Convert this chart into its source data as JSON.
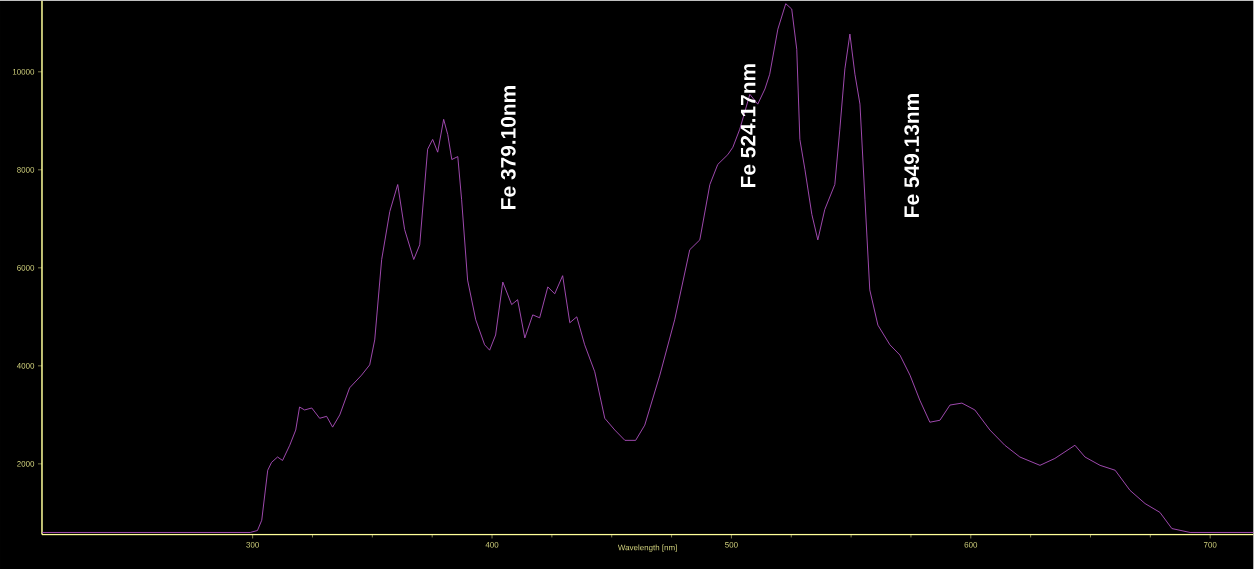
{
  "chart_data": {
    "type": "line",
    "xlabel": "Wavelength [nm]",
    "annotations": [
      "Fe 379.10nm",
      "Fe 524.17nm",
      "Fe 549.13nm"
    ],
    "x": [
      212,
      250,
      299,
      302,
      303.8,
      306.3,
      307.9,
      310.4,
      312.5,
      315.5,
      318,
      319.6,
      321.7,
      324.7,
      328,
      330.9,
      333.4,
      336.4,
      340.5,
      345.5,
      348.9,
      351,
      353.9,
      357.3,
      360.6,
      363.5,
      367.3,
      369.8,
      373.1,
      375.2,
      377.3,
      379.8,
      381.5,
      383.2,
      385.7,
      387.3,
      389.8,
      393.2,
      396.9,
      399,
      401.5,
      404.5,
      408.2,
      410.7,
      413.7,
      417,
      419.9,
      423.3,
      426.2,
      429.5,
      432.5,
      435.4,
      438.7,
      442.9,
      447.1,
      451.3,
      455.5,
      460,
      463.8,
      470.1,
      476.3,
      482.6,
      486.8,
      491,
      494.3,
      498.5,
      500.6,
      503.5,
      507.7,
      511,
      514,
      516,
      519.4,
      522.7,
      525.2,
      527.3,
      528.6,
      530.7,
      533.6,
      536.1,
      539,
      543.2,
      545.3,
      547.4,
      549.5,
      551.6,
      553.7,
      555.8,
      557.8,
      561.2,
      566.2,
      570.4,
      574.6,
      578.7,
      582.9,
      587.1,
      591.3,
      596.3,
      601.7,
      608,
      614.2,
      620.5,
      628.9,
      635.1,
      643.5,
      647.7,
      654,
      660.3,
      666.5,
      672.8,
      679,
      684,
      691.6,
      718
    ],
    "series": [
      {
        "color": "#b050c0",
        "values": [
          600,
          600,
          600,
          640,
          850,
          1870,
          2030,
          2140,
          2070,
          2380,
          2690,
          3160,
          3100,
          3140,
          2930,
          2970,
          2750,
          3000,
          3550,
          3810,
          4020,
          4530,
          6170,
          7150,
          7700,
          6780,
          6170,
          6470,
          8420,
          8620,
          8360,
          9030,
          8720,
          8210,
          8270,
          7390,
          5750,
          4940,
          4430,
          4320,
          4630,
          5710,
          5250,
          5350,
          4570,
          5040,
          4980,
          5610,
          5470,
          5840,
          4880,
          5000,
          4430,
          3880,
          2930,
          2690,
          2480,
          2480,
          2790,
          3810,
          4940,
          6370,
          6570,
          7700,
          8110,
          8310,
          8460,
          8830,
          9540,
          9340,
          9650,
          9950,
          10870,
          11390,
          11280,
          10460,
          8620,
          8010,
          7090,
          6570,
          7190,
          7700,
          8830,
          10060,
          10770,
          9950,
          9340,
          7390,
          5550,
          4830,
          4430,
          4220,
          3810,
          3300,
          2850,
          2890,
          3200,
          3240,
          3100,
          2690,
          2380,
          2140,
          1970,
          2110,
          2380,
          2140,
          1970,
          1870,
          1460,
          1190,
          1010,
          680,
          600,
          600
        ]
      }
    ],
    "xlim": [
      212,
      718
    ],
    "ylim": [
      560,
      11450
    ],
    "xticks": [
      300,
      400,
      500,
      600,
      700
    ],
    "yticks": [
      2000,
      4000,
      6000,
      8000,
      10000
    ]
  }
}
